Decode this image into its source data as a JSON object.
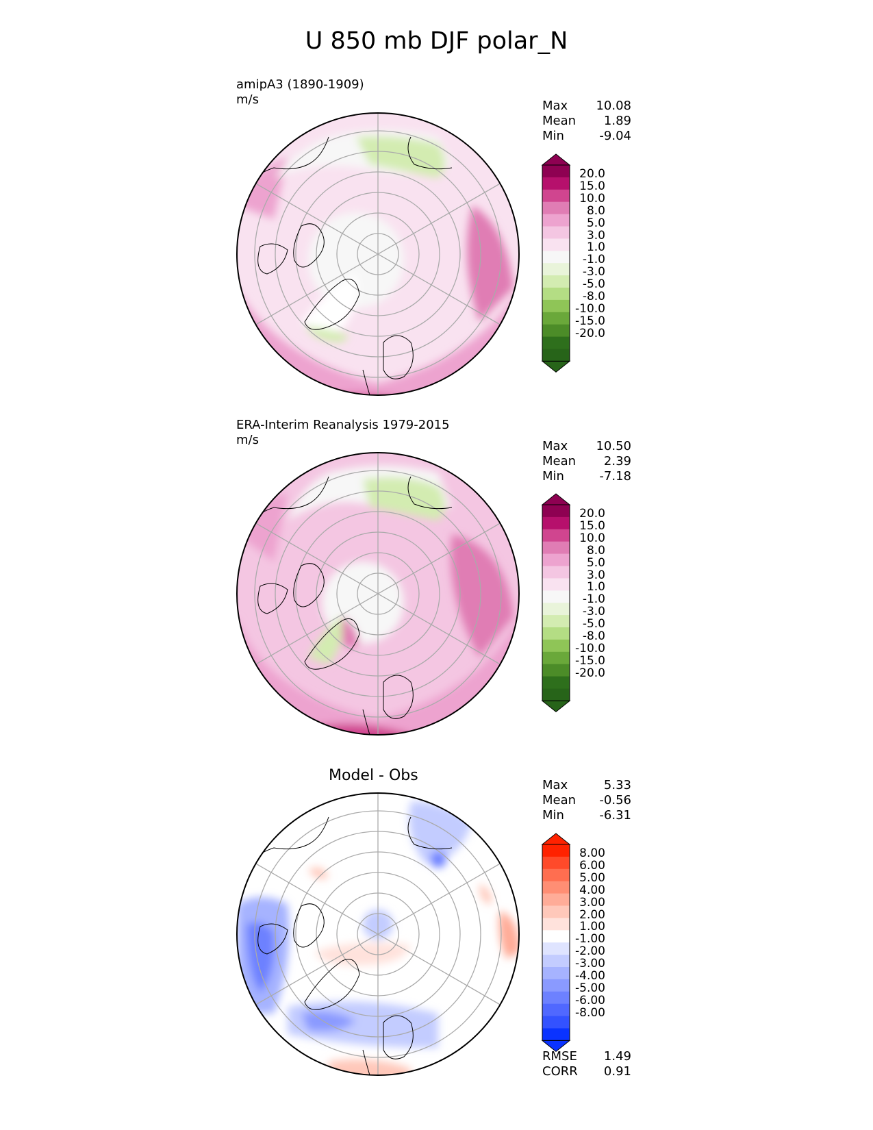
{
  "figure": {
    "title": "U 850 mb DJF polar_N"
  },
  "panels": [
    {
      "id": "model",
      "title": "amipA3 (1890-1909)",
      "units": "m/s",
      "stats": [
        {
          "label": "Max",
          "value": "10.08"
        },
        {
          "label": "Mean",
          "value": "1.89"
        },
        {
          "label": "Min",
          "value": "-9.04"
        }
      ],
      "colorbar": {
        "ticks": [
          "20.0",
          "15.0",
          "10.0",
          "8.0",
          "5.0",
          "3.0",
          "1.0",
          "-1.0",
          "-3.0",
          "-5.0",
          "-8.0",
          "-10.0",
          "-15.0",
          "-20.0"
        ],
        "colors": [
          "#8e0152",
          "#b6106c",
          "#d0458f",
          "#e07db4",
          "#eda3cf",
          "#f4c6e2",
          "#f9e2f0",
          "#f7f7f7",
          "#e9f4da",
          "#d3ecb1",
          "#b4dd84",
          "#8fc557",
          "#6aa83a",
          "#4c8c28",
          "#2e6f1c",
          "#276419"
        ],
        "extend_high": "#8e0152",
        "extend_low": "#276419"
      }
    },
    {
      "id": "obs",
      "title": "ERA-Interim Reanalysis 1979-2015",
      "units": "m/s",
      "stats": [
        {
          "label": "Max",
          "value": "10.50"
        },
        {
          "label": "Mean",
          "value": "2.39"
        },
        {
          "label": "Min",
          "value": "-7.18"
        }
      ],
      "colorbar": {
        "ticks": [
          "20.0",
          "15.0",
          "10.0",
          "8.0",
          "5.0",
          "3.0",
          "1.0",
          "-1.0",
          "-3.0",
          "-5.0",
          "-8.0",
          "-10.0",
          "-15.0",
          "-20.0"
        ],
        "colors": [
          "#8e0152",
          "#b6106c",
          "#d0458f",
          "#e07db4",
          "#eda3cf",
          "#f4c6e2",
          "#f9e2f0",
          "#f7f7f7",
          "#e9f4da",
          "#d3ecb1",
          "#b4dd84",
          "#8fc557",
          "#6aa83a",
          "#4c8c28",
          "#2e6f1c",
          "#276419"
        ],
        "extend_high": "#8e0152",
        "extend_low": "#276419"
      }
    },
    {
      "id": "diff",
      "title": "Model - Obs",
      "units": "",
      "stats": [
        {
          "label": "Max",
          "value": "5.33"
        },
        {
          "label": "Mean",
          "value": "-0.56"
        },
        {
          "label": "Min",
          "value": "-6.31"
        }
      ],
      "extra_stats": [
        {
          "label": "RMSE",
          "value": "1.49"
        },
        {
          "label": "CORR",
          "value": "0.91"
        }
      ],
      "colorbar": {
        "ticks": [
          "8.00",
          "6.00",
          "5.00",
          "4.00",
          "3.00",
          "2.00",
          "1.00",
          "-1.00",
          "-2.00",
          "-3.00",
          "-4.00",
          "-5.00",
          "-6.00",
          "-8.00"
        ],
        "colors": [
          "#ff2200",
          "#ff4a2a",
          "#ff6e50",
          "#ff8e74",
          "#ffac98",
          "#ffc8ba",
          "#ffe2dc",
          "#ffffff",
          "#dfe4ff",
          "#c3ccff",
          "#a6b3ff",
          "#8a9aff",
          "#6d81ff",
          "#5068ff",
          "#3352ff",
          "#0a33ff"
        ],
        "extend_high": "#ff2200",
        "extend_low": "#0a33ff"
      }
    }
  ],
  "chart_data": [
    {
      "type": "heatmap",
      "projection": "polar stereographic (north)",
      "title": "amipA3 (1890-1909)",
      "units": "m/s",
      "max": 10.08,
      "mean": 1.89,
      "min": -9.04,
      "levels": [
        -20,
        -15,
        -10,
        -8,
        -5,
        -3,
        -1,
        1,
        3,
        5,
        8,
        10,
        15,
        20
      ]
    },
    {
      "type": "heatmap",
      "projection": "polar stereographic (north)",
      "title": "ERA-Interim Reanalysis 1979-2015",
      "units": "m/s",
      "max": 10.5,
      "mean": 2.39,
      "min": -7.18,
      "levels": [
        -20,
        -15,
        -10,
        -8,
        -5,
        -3,
        -1,
        1,
        3,
        5,
        8,
        10,
        15,
        20
      ]
    },
    {
      "type": "heatmap",
      "projection": "polar stereographic (north)",
      "title": "Model - Obs",
      "max": 5.33,
      "mean": -0.56,
      "min": -6.31,
      "rmse": 1.49,
      "corr": 0.91,
      "levels": [
        -8,
        -6,
        -5,
        -4,
        -3,
        -2,
        -1,
        1,
        2,
        3,
        4,
        5,
        6,
        8
      ]
    }
  ]
}
